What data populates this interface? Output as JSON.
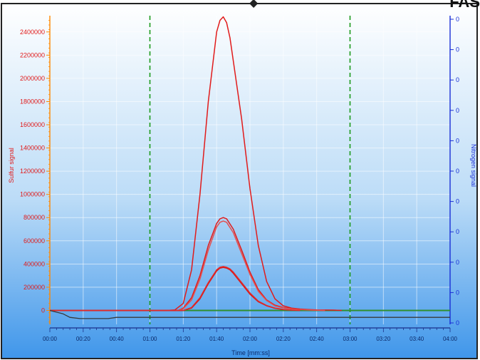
{
  "header": {
    "fragment": "FAS",
    "arrow": "◆"
  },
  "chart_data": {
    "type": "line",
    "ylabel": "Sulfur signal",
    "y2label": "Nitrogen signal",
    "xlabel": "Time [mm:ss]",
    "x_ticks": [
      "00:00",
      "00:20",
      "00:40",
      "01:00",
      "01:20",
      "01:40",
      "02:00",
      "02:20",
      "02:40",
      "03:00",
      "03:20",
      "03:40",
      "04:00"
    ],
    "y_ticks": [
      0,
      200000,
      400000,
      600000,
      800000,
      1000000,
      1200000,
      1400000,
      1600000,
      1800000,
      2000000,
      2200000,
      2400000
    ],
    "y_tick_labels": [
      "0",
      "200000",
      "400000",
      "600000",
      "800000",
      "1000000",
      "1200000",
      "1400000",
      "1600000",
      "1800000",
      "2000000",
      "2200000",
      "2400000"
    ],
    "y2_tick_labels": [
      "0",
      "0",
      "0",
      "0",
      "0",
      "0",
      "0",
      "0",
      "0",
      "0",
      "0"
    ],
    "xlim": [
      0,
      240
    ],
    "ylim": [
      -120000,
      2540000
    ],
    "integration_markers": [
      60,
      180
    ],
    "series": [
      {
        "x": [
          0,
          70,
          75,
          80,
          85,
          90,
          95,
          100,
          102,
          104,
          106,
          108,
          110,
          115,
          120,
          125,
          130,
          135,
          140,
          145,
          150,
          155,
          160,
          170,
          175
        ],
        "values": [
          0,
          0,
          5000,
          60000,
          350000,
          1000000,
          1800000,
          2400000,
          2500000,
          2530000,
          2480000,
          2350000,
          2150000,
          1650000,
          1050000,
          560000,
          250000,
          100000,
          40000,
          20000,
          12000,
          8000,
          5000,
          3000,
          0
        ]
      },
      {
        "x": [
          0,
          77,
          80,
          85,
          90,
          95,
          100,
          102,
          104,
          106,
          110,
          115,
          120,
          125,
          130,
          135,
          140,
          145,
          150,
          155,
          160,
          165
        ],
        "values": [
          0,
          0,
          20000,
          110000,
          300000,
          560000,
          750000,
          790000,
          800000,
          790000,
          700000,
          520000,
          330000,
          180000,
          90000,
          45000,
          25000,
          15000,
          10000,
          5000,
          2000,
          0
        ]
      },
      {
        "x": [
          0,
          77,
          80,
          85,
          90,
          95,
          100,
          102,
          104,
          106,
          110,
          115,
          120,
          125,
          130,
          135,
          140,
          145,
          150,
          155,
          160,
          165
        ],
        "values": [
          0,
          0,
          15000,
          90000,
          270000,
          520000,
          720000,
          760000,
          770000,
          760000,
          670000,
          490000,
          310000,
          165000,
          85000,
          40000,
          22000,
          13000,
          8000,
          4000,
          1500,
          0
        ]
      },
      {
        "x": [
          0,
          80,
          85,
          90,
          95,
          100,
          102,
          104,
          106,
          108,
          110,
          115,
          120,
          125,
          130,
          135,
          140,
          145,
          150
        ],
        "values": [
          0,
          0,
          20000,
          100000,
          230000,
          340000,
          365000,
          370000,
          365000,
          350000,
          320000,
          230000,
          140000,
          75000,
          40000,
          18000,
          8000,
          3000,
          0
        ]
      },
      {
        "x": [
          0,
          80,
          85,
          90,
          95,
          100,
          102,
          104,
          106,
          108,
          110,
          115,
          120,
          125,
          130,
          135,
          140,
          145,
          150
        ],
        "values": [
          0,
          0,
          25000,
          110000,
          240000,
          350000,
          372000,
          378000,
          372000,
          358000,
          330000,
          240000,
          150000,
          80000,
          42000,
          20000,
          9000,
          3000,
          0
        ]
      },
      {
        "x": [
          0,
          8,
          12,
          18,
          35,
          40,
          240
        ],
        "values": [
          0,
          -30000,
          -60000,
          -70000,
          -70000,
          -60000,
          -60000
        ]
      }
    ],
    "series_colors": [
      "#e11b1b",
      "#e11b1b",
      "#e35050",
      "#d91515",
      "#e02a2a",
      "#3a3a3a"
    ],
    "baseline_color": "#2f8f2f",
    "y_axis_color": "#ff8800",
    "y2_axis_color": "#1a2fd6"
  }
}
